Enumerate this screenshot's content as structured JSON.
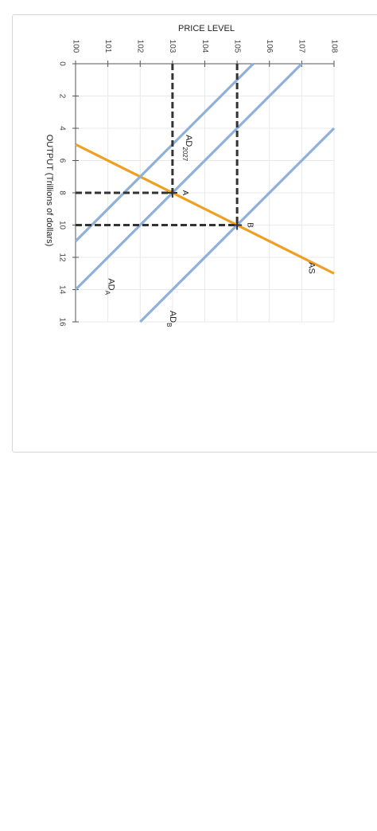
{
  "chart_data": {
    "type": "line",
    "orientation": "rotated 90 degrees clockwise",
    "xlabel": "OUTPUT (Trillions of dollars)",
    "ylabel": "PRICE LEVEL",
    "xlim": [
      0,
      16
    ],
    "ylim": [
      100,
      108
    ],
    "x_ticks": [
      0,
      2,
      4,
      6,
      8,
      10,
      12,
      14,
      16
    ],
    "y_ticks": [
      100,
      101,
      102,
      103,
      104,
      105,
      106,
      107,
      108
    ],
    "grid": true,
    "series": [
      {
        "name": "AS",
        "color": "#f0a020",
        "points": [
          [
            5,
            100
          ],
          [
            13,
            108
          ]
        ]
      },
      {
        "name": "AD",
        "subscript": "2027",
        "color": "#8fb0d8",
        "points": [
          [
            11,
            100
          ],
          [
            0,
            105.5
          ]
        ]
      },
      {
        "name": "AD",
        "subscript": "A",
        "color": "#8fb0d8",
        "points": [
          [
            14,
            100
          ],
          [
            0,
            107
          ]
        ]
      },
      {
        "name": "AD",
        "subscript": "B",
        "color": "#8fb0d8",
        "points": [
          [
            16,
            102
          ],
          [
            4,
            108
          ]
        ]
      }
    ],
    "points": [
      {
        "label": "A",
        "x": 8,
        "y": 103
      },
      {
        "label": "B",
        "x": 10,
        "y": 105
      }
    ],
    "guides": [
      {
        "from": [
          8,
          100
        ],
        "to": [
          8,
          103
        ]
      },
      {
        "from": [
          0,
          103
        ],
        "to": [
          8,
          103
        ]
      },
      {
        "from": [
          10,
          100
        ],
        "to": [
          10,
          105
        ]
      },
      {
        "from": [
          0,
          105
        ],
        "to": [
          10,
          105
        ]
      }
    ]
  }
}
